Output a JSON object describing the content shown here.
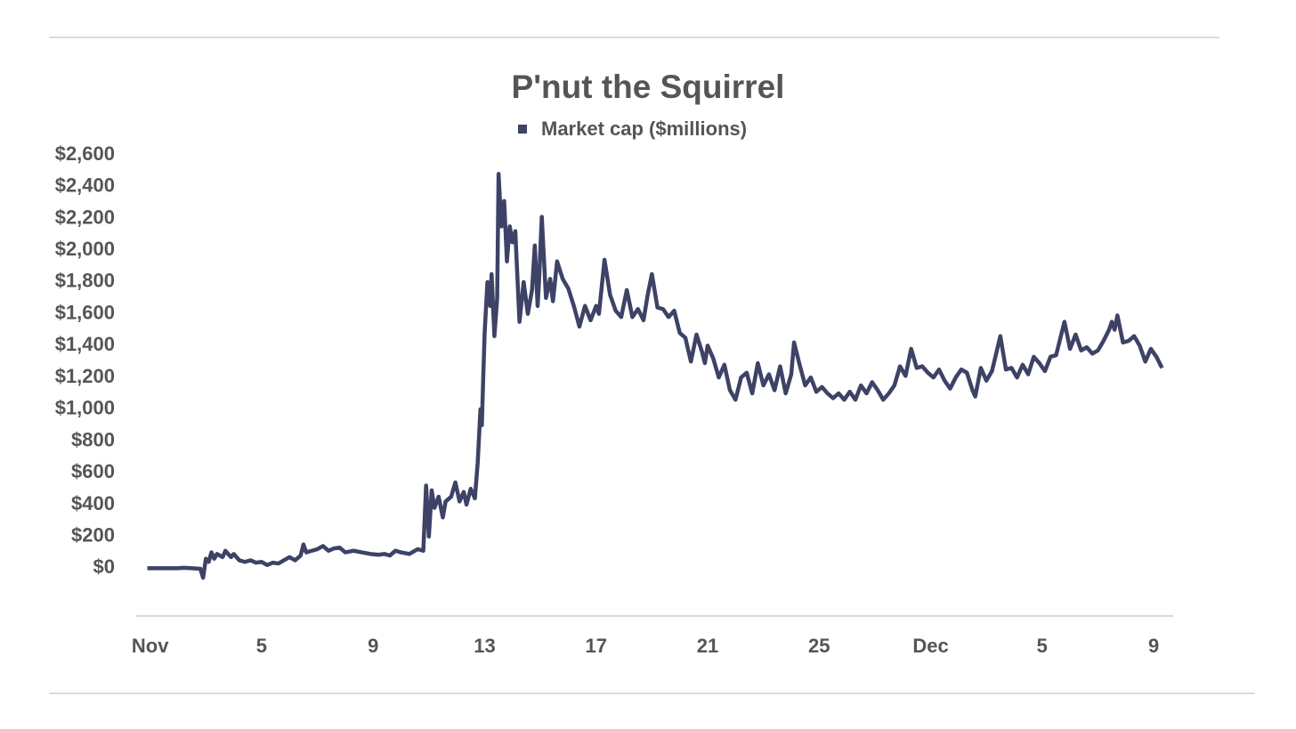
{
  "chart_data": {
    "type": "line",
    "title": "P'nut the Squirrel",
    "x": [
      -0.1,
      0.5,
      1.0,
      1.2,
      1.5,
      1.8,
      1.9,
      2.0,
      2.1,
      2.2,
      2.3,
      2.4,
      2.6,
      2.7,
      2.9,
      3.0,
      3.2,
      3.4,
      3.6,
      3.8,
      4.0,
      4.2,
      4.4,
      4.6,
      4.8,
      5.0,
      5.2,
      5.4,
      5.5,
      5.6,
      5.8,
      6.0,
      6.2,
      6.4,
      6.6,
      6.8,
      7.0,
      7.3,
      7.6,
      7.9,
      8.2,
      8.4,
      8.6,
      8.8,
      9.0,
      9.3,
      9.6,
      9.8,
      9.9,
      10.0,
      10.1,
      10.2,
      10.35,
      10.5,
      10.6,
      10.8,
      10.95,
      11.1,
      11.25,
      11.35,
      11.5,
      11.65,
      11.75,
      11.85,
      11.9,
      11.95,
      12.0,
      12.1,
      12.2,
      12.25,
      12.35,
      12.45,
      12.5,
      12.6,
      12.7,
      12.8,
      12.9,
      13.0,
      13.1,
      13.25,
      13.4,
      13.55,
      13.7,
      13.8,
      13.9,
      13.95,
      14.05,
      14.2,
      14.35,
      14.45,
      14.6,
      14.8,
      15.0,
      15.2,
      15.4,
      15.6,
      15.8,
      16.0,
      16.1,
      16.3,
      16.5,
      16.7,
      16.9,
      17.1,
      17.3,
      17.5,
      17.7,
      17.85,
      18.0,
      18.2,
      18.4,
      18.6,
      18.8,
      19.0,
      19.2,
      19.4,
      19.6,
      19.8,
      19.9,
      20.0,
      20.2,
      20.4,
      20.6,
      20.8,
      21.0,
      21.2,
      21.4,
      21.6,
      21.8,
      22.0,
      22.2,
      22.4,
      22.6,
      22.8,
      23.0,
      23.1,
      23.3,
      23.5,
      23.7,
      23.9,
      24.1,
      24.3,
      24.5,
      24.7,
      24.9,
      25.1,
      25.3,
      25.5,
      25.7,
      25.9,
      26.1,
      26.3,
      26.5,
      26.7,
      26.9,
      27.1,
      27.3,
      27.5,
      27.7,
      27.9,
      28.1,
      28.3,
      28.5,
      28.7,
      28.9,
      29.1,
      29.3,
      29.5,
      29.6,
      29.8,
      30.0,
      30.2,
      30.5,
      30.7,
      30.9,
      31.1,
      31.3,
      31.5,
      31.7,
      31.9,
      32.1,
      32.3,
      32.5,
      32.8,
      33.0,
      33.2,
      33.4,
      33.6,
      33.8,
      34.0,
      34.2,
      34.4,
      34.5,
      34.6,
      34.7,
      34.9,
      35.1,
      35.3,
      35.5,
      35.7,
      35.9,
      36.1,
      36.3
    ],
    "series": [
      {
        "name": "Market cap ($millions)",
        "color": "#3d4266",
        "values": [
          0,
          0,
          0,
          3,
          0,
          -3,
          -60,
          60,
          40,
          100,
          60,
          90,
          70,
          110,
          70,
          90,
          50,
          40,
          50,
          35,
          40,
          20,
          35,
          30,
          50,
          70,
          50,
          80,
          150,
          100,
          110,
          120,
          140,
          110,
          125,
          130,
          100,
          110,
          100,
          90,
          85,
          90,
          80,
          110,
          100,
          90,
          120,
          110,
          520,
          200,
          490,
          380,
          450,
          320,
          420,
          450,
          540,
          420,
          480,
          400,
          500,
          440,
          660,
          1000,
          900,
          1200,
          1480,
          1800,
          1650,
          1850,
          1460,
          1700,
          2480,
          2150,
          2310,
          1930,
          2150,
          2050,
          2120,
          1550,
          1800,
          1600,
          1750,
          2030,
          1650,
          1800,
          2210,
          1700,
          1820,
          1680,
          1930,
          1820,
          1760,
          1650,
          1520,
          1650,
          1560,
          1650,
          1600,
          1940,
          1720,
          1620,
          1580,
          1750,
          1580,
          1630,
          1560,
          1720,
          1850,
          1640,
          1630,
          1580,
          1620,
          1480,
          1450,
          1300,
          1470,
          1360,
          1290,
          1400,
          1320,
          1200,
          1280,
          1120,
          1060,
          1200,
          1230,
          1100,
          1290,
          1150,
          1220,
          1120,
          1270,
          1100,
          1220,
          1420,
          1280,
          1150,
          1200,
          1110,
          1140,
          1100,
          1070,
          1100,
          1060,
          1110,
          1060,
          1150,
          1100,
          1170,
          1120,
          1060,
          1100,
          1150,
          1270,
          1210,
          1380,
          1260,
          1270,
          1230,
          1200,
          1250,
          1180,
          1130,
          1200,
          1250,
          1230,
          1120,
          1080,
          1260,
          1180,
          1240,
          1460,
          1250,
          1260,
          1200,
          1280,
          1220,
          1330,
          1290,
          1240,
          1330,
          1340,
          1550,
          1380,
          1470,
          1370,
          1390,
          1350,
          1370,
          1430,
          1500,
          1550,
          1500,
          1590,
          1420,
          1430,
          1460,
          1400,
          1300,
          1380,
          1330,
          1260
        ]
      }
    ],
    "xlim": [
      -0.5,
      36.7
    ],
    "xticks": [
      {
        "value": 0,
        "label": "Nov"
      },
      {
        "value": 4,
        "label": "5"
      },
      {
        "value": 8,
        "label": "9"
      },
      {
        "value": 12,
        "label": "13"
      },
      {
        "value": 16,
        "label": "17"
      },
      {
        "value": 20,
        "label": "21"
      },
      {
        "value": 24,
        "label": "25"
      },
      {
        "value": 28,
        "label": "Dec"
      },
      {
        "value": 32,
        "label": "5"
      },
      {
        "value": 36,
        "label": "9"
      }
    ],
    "ylim": [
      -300,
      2600
    ],
    "yticks": [
      {
        "value": 0,
        "label": "$0"
      },
      {
        "value": 200,
        "label": "$200"
      },
      {
        "value": 400,
        "label": "$400"
      },
      {
        "value": 600,
        "label": "$600"
      },
      {
        "value": 800,
        "label": "$800"
      },
      {
        "value": 1000,
        "label": "$1,000"
      },
      {
        "value": 1200,
        "label": "$1,200"
      },
      {
        "value": 1400,
        "label": "$1,400"
      },
      {
        "value": 1600,
        "label": "$1,600"
      },
      {
        "value": 1800,
        "label": "$1,800"
      },
      {
        "value": 2000,
        "label": "$2,000"
      },
      {
        "value": 2200,
        "label": "$2,200"
      },
      {
        "value": 2400,
        "label": "$2,400"
      },
      {
        "value": 2600,
        "label": "$2,600"
      }
    ],
    "grid": false
  }
}
